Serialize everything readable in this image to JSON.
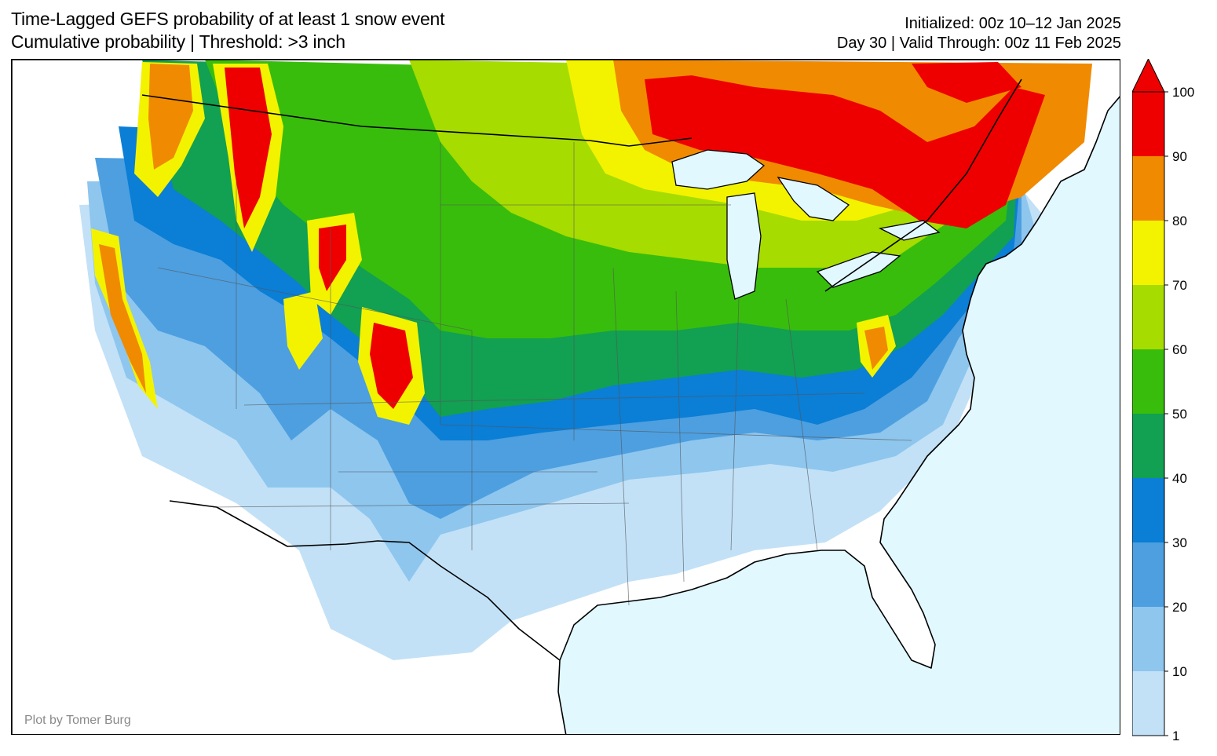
{
  "header": {
    "title_line1": "Time-Lagged GEFS probability of at least 1 snow event",
    "title_line2": "Cumulative probability | Threshold: >3 inch",
    "initialized": "Initialized: 00z 10–12 Jan 2025",
    "valid": "Day 30 | Valid Through: 00z 11 Feb 2025"
  },
  "credit": "Plot by Tomer Burg",
  "colorbar": {
    "levels": [
      {
        "label": "1",
        "color": "#c2e1f7"
      },
      {
        "label": "10",
        "color": "#8ec6ee"
      },
      {
        "label": "20",
        "color": "#4d9fe0"
      },
      {
        "label": "30",
        "color": "#0b7ed6"
      },
      {
        "label": "40",
        "color": "#12a052"
      },
      {
        "label": "50",
        "color": "#38bd0c"
      },
      {
        "label": "60",
        "color": "#a6dc00"
      },
      {
        "label": "70",
        "color": "#f3f300"
      },
      {
        "label": "80",
        "color": "#f08a00"
      },
      {
        "label": "90",
        "color": "#ee0000"
      }
    ],
    "max_label": "100",
    "extend": "max"
  },
  "map_colors": {
    "ocean": "#e1f8ff",
    "land_no_data": "#ffffff",
    "outline": "#000000",
    "state_lines": "#555555"
  }
}
